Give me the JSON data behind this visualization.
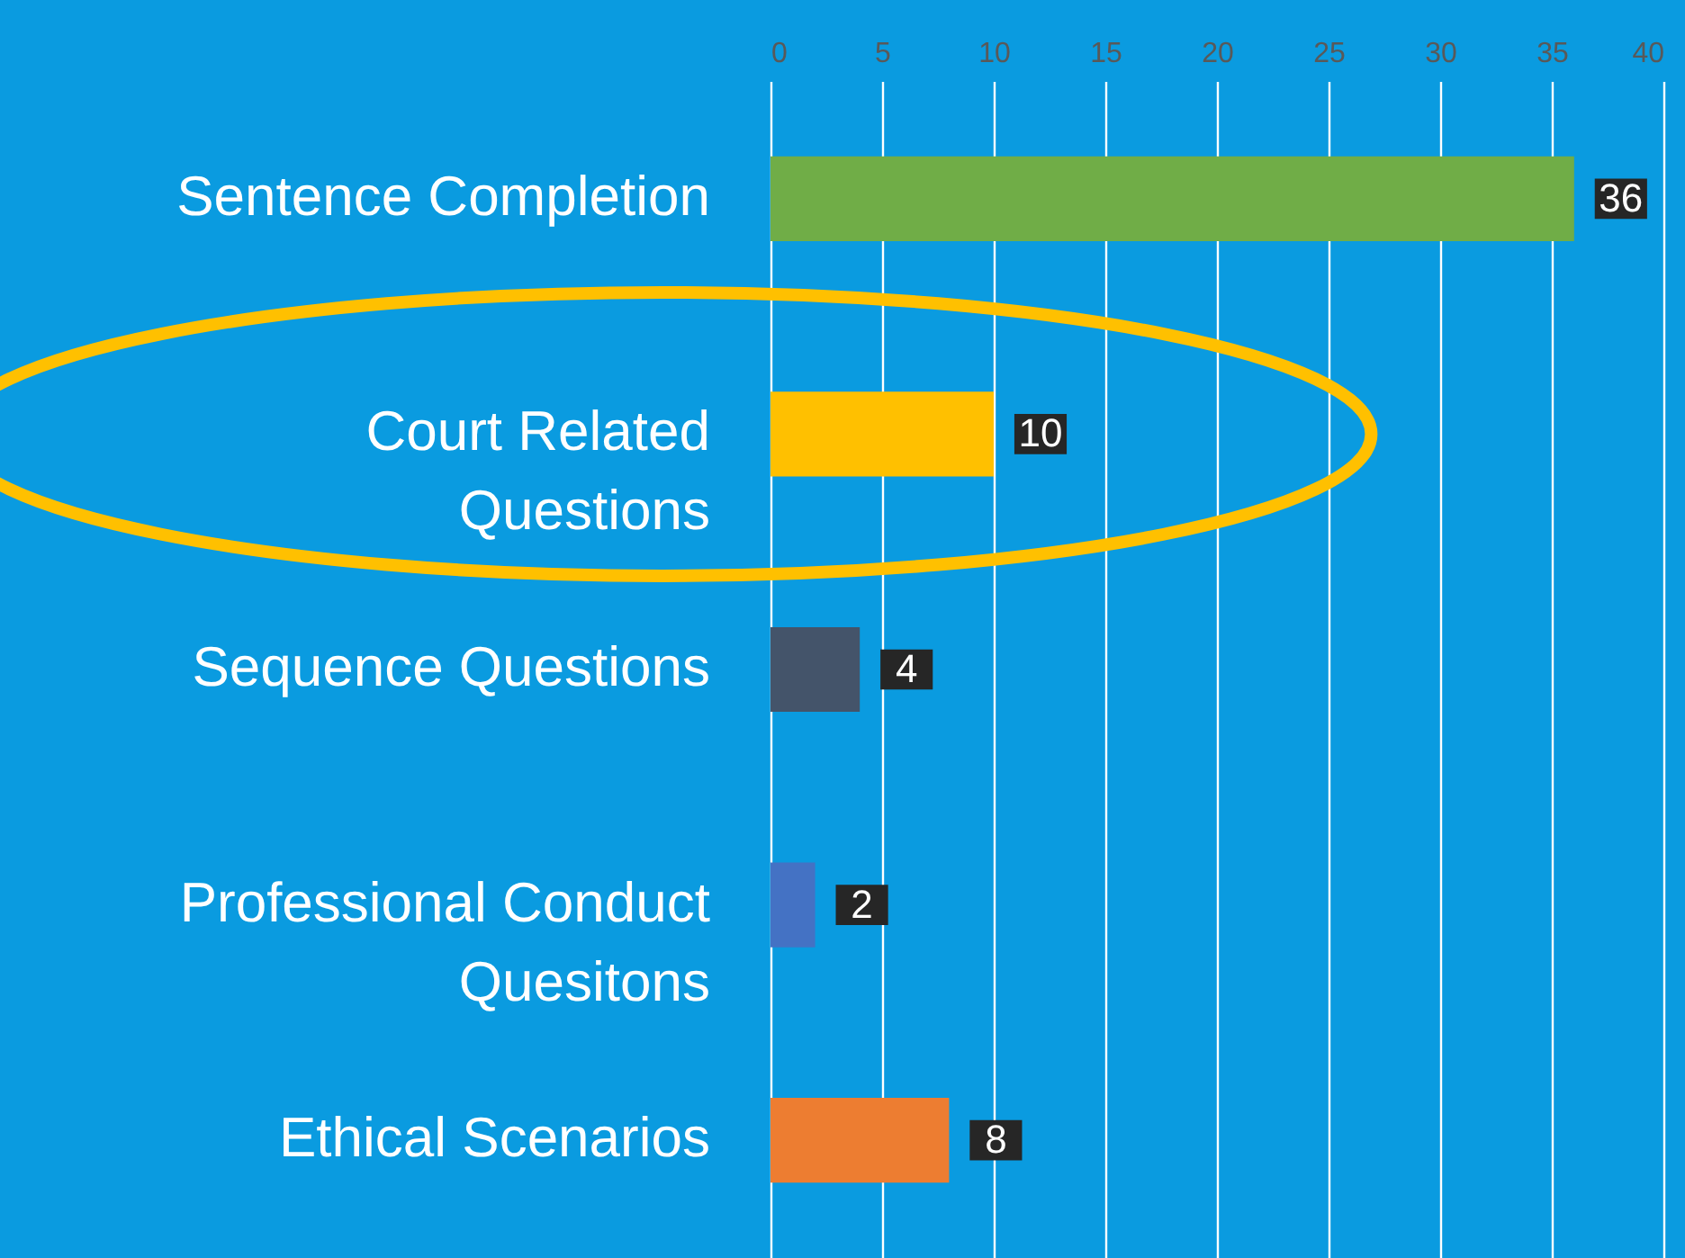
{
  "chart_data": {
    "type": "bar",
    "orientation": "horizontal",
    "categories": [
      "Sentence Completion",
      "Court Related Questions",
      "Sequence Questions",
      "Professional Conduct Quesitons",
      "Ethical Scenarios"
    ],
    "values": [
      36,
      10,
      4,
      2,
      8
    ],
    "colors": [
      "#70ad47",
      "#ffc000",
      "#44546a",
      "#4472c4",
      "#ed7d31"
    ],
    "xlim": [
      0,
      40
    ],
    "xticks": [
      0,
      5,
      10,
      15,
      20,
      25,
      30,
      35,
      40
    ],
    "grid": "x",
    "data_labels": true
  }
}
